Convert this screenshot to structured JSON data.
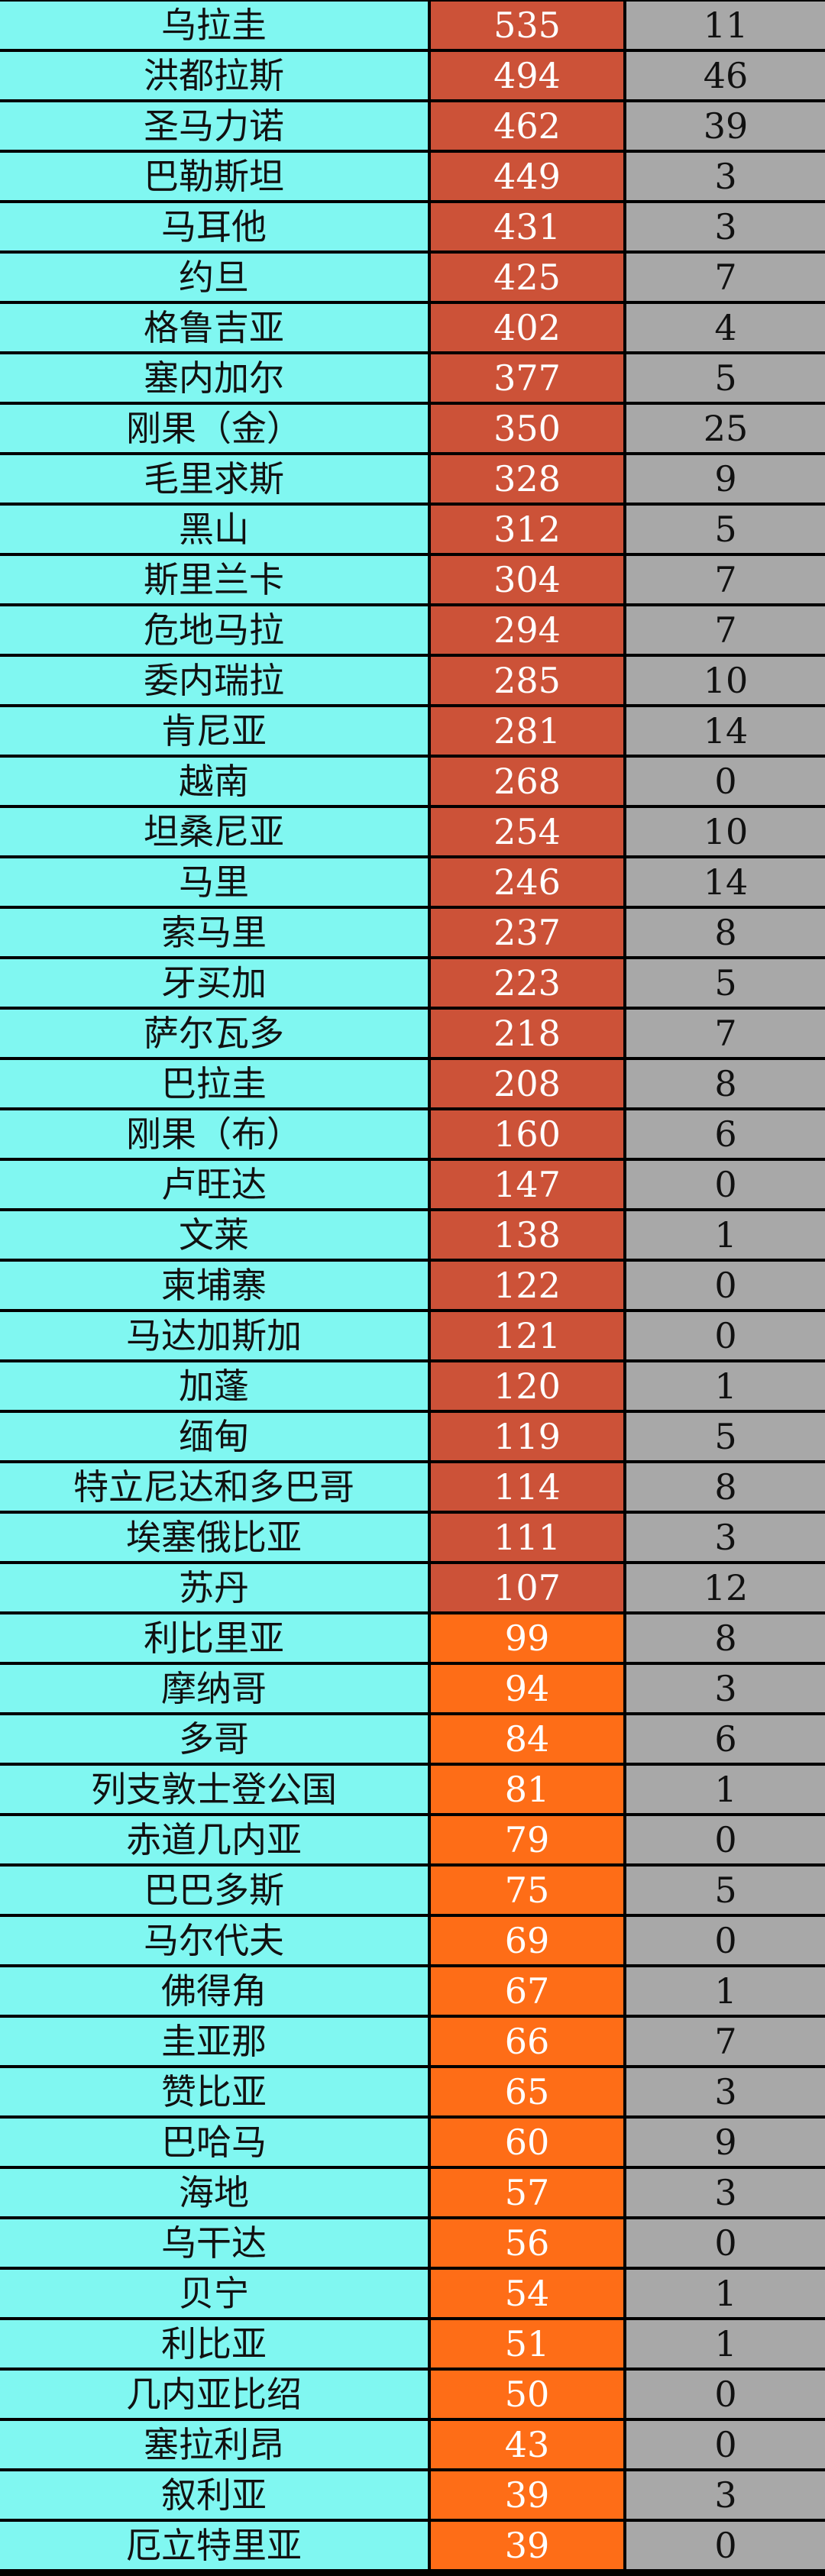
{
  "colors": {
    "name_cell": "#80f7f1",
    "value_cell_high": "#cc5238",
    "value_cell_low": "#fe6d17",
    "count_cell": "#a8a8a8",
    "grid": "#000000"
  },
  "chart_data": {
    "type": "table",
    "columns": [
      "country",
      "value",
      "count"
    ],
    "rows": [
      {
        "country": "乌拉圭",
        "value": 535,
        "count": 11
      },
      {
        "country": "洪都拉斯",
        "value": 494,
        "count": 46
      },
      {
        "country": "圣马力诺",
        "value": 462,
        "count": 39
      },
      {
        "country": "巴勒斯坦",
        "value": 449,
        "count": 3
      },
      {
        "country": "马耳他",
        "value": 431,
        "count": 3
      },
      {
        "country": "约旦",
        "value": 425,
        "count": 7
      },
      {
        "country": "格鲁吉亚",
        "value": 402,
        "count": 4
      },
      {
        "country": "塞内加尔",
        "value": 377,
        "count": 5
      },
      {
        "country": "刚果（金）",
        "value": 350,
        "count": 25
      },
      {
        "country": "毛里求斯",
        "value": 328,
        "count": 9
      },
      {
        "country": "黑山",
        "value": 312,
        "count": 5
      },
      {
        "country": "斯里兰卡",
        "value": 304,
        "count": 7
      },
      {
        "country": "危地马拉",
        "value": 294,
        "count": 7
      },
      {
        "country": "委内瑞拉",
        "value": 285,
        "count": 10
      },
      {
        "country": "肯尼亚",
        "value": 281,
        "count": 14
      },
      {
        "country": "越南",
        "value": 268,
        "count": 0
      },
      {
        "country": "坦桑尼亚",
        "value": 254,
        "count": 10
      },
      {
        "country": "马里",
        "value": 246,
        "count": 14
      },
      {
        "country": "索马里",
        "value": 237,
        "count": 8
      },
      {
        "country": "牙买加",
        "value": 223,
        "count": 5
      },
      {
        "country": "萨尔瓦多",
        "value": 218,
        "count": 7
      },
      {
        "country": "巴拉圭",
        "value": 208,
        "count": 8
      },
      {
        "country": "刚果（布）",
        "value": 160,
        "count": 6
      },
      {
        "country": "卢旺达",
        "value": 147,
        "count": 0
      },
      {
        "country": "文莱",
        "value": 138,
        "count": 1
      },
      {
        "country": "柬埔寨",
        "value": 122,
        "count": 0
      },
      {
        "country": "马达加斯加",
        "value": 121,
        "count": 0
      },
      {
        "country": "加蓬",
        "value": 120,
        "count": 1
      },
      {
        "country": "缅甸",
        "value": 119,
        "count": 5
      },
      {
        "country": "特立尼达和多巴哥",
        "value": 114,
        "count": 8
      },
      {
        "country": "埃塞俄比亚",
        "value": 111,
        "count": 3
      },
      {
        "country": "苏丹",
        "value": 107,
        "count": 12
      },
      {
        "country": "利比里亚",
        "value": 99,
        "count": 8
      },
      {
        "country": "摩纳哥",
        "value": 94,
        "count": 3
      },
      {
        "country": "多哥",
        "value": 84,
        "count": 6
      },
      {
        "country": "列支敦士登公国",
        "value": 81,
        "count": 1
      },
      {
        "country": "赤道几内亚",
        "value": 79,
        "count": 0
      },
      {
        "country": "巴巴多斯",
        "value": 75,
        "count": 5
      },
      {
        "country": "马尔代夫",
        "value": 69,
        "count": 0
      },
      {
        "country": "佛得角",
        "value": 67,
        "count": 1
      },
      {
        "country": "圭亚那",
        "value": 66,
        "count": 7
      },
      {
        "country": "赞比亚",
        "value": 65,
        "count": 3
      },
      {
        "country": "巴哈马",
        "value": 60,
        "count": 9
      },
      {
        "country": "海地",
        "value": 57,
        "count": 3
      },
      {
        "country": "乌干达",
        "value": 56,
        "count": 0
      },
      {
        "country": "贝宁",
        "value": 54,
        "count": 1
      },
      {
        "country": "利比亚",
        "value": 51,
        "count": 1
      },
      {
        "country": "几内亚比绍",
        "value": 50,
        "count": 0
      },
      {
        "country": "塞拉利昂",
        "value": 43,
        "count": 0
      },
      {
        "country": "叙利亚",
        "value": 39,
        "count": 3
      },
      {
        "country": "厄立特里亚",
        "value": 39,
        "count": 0
      }
    ]
  }
}
